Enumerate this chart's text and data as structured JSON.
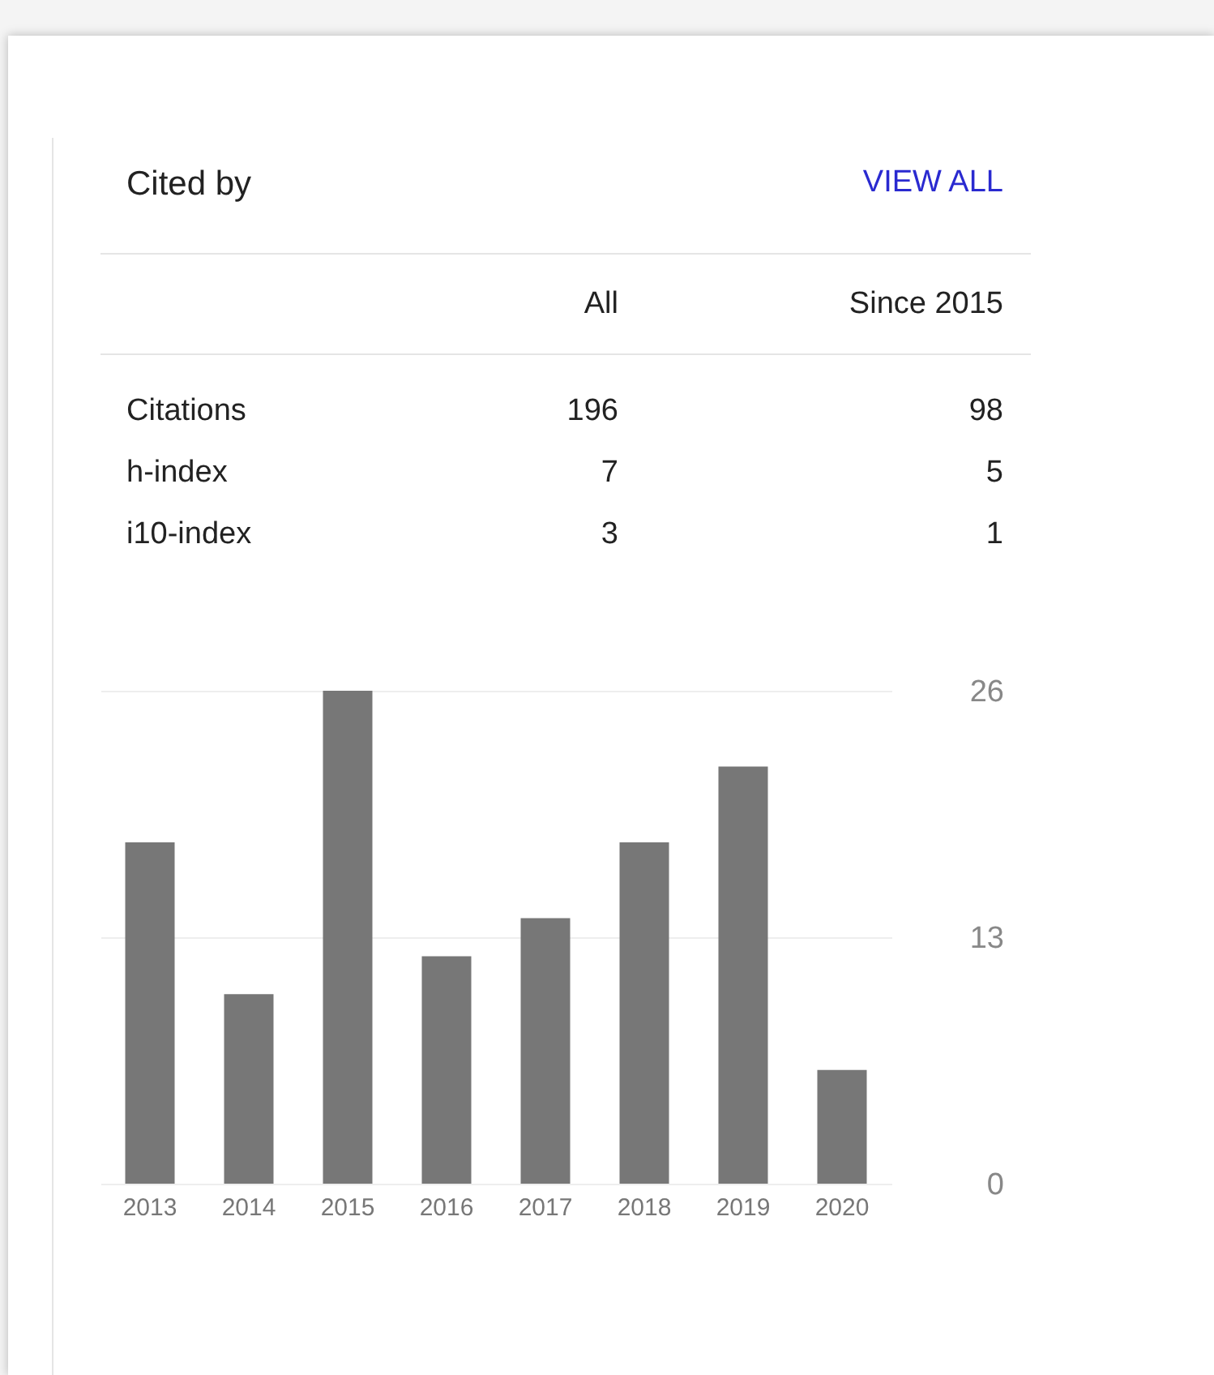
{
  "chart_data": [
    {
      "type": "other",
      "title": "Cited by",
      "annotations": [
        "VIEW ALL"
      ],
      "categories": [
        "All",
        "Since 2015"
      ],
      "y_categories": [
        "Citations",
        "h-index",
        "i10-index"
      ],
      "cell_labels": [
        [
          "196",
          "98"
        ],
        [
          "7",
          "5"
        ],
        [
          "3",
          "1"
        ]
      ]
    },
    {
      "type": "bar",
      "categories": [
        "2013",
        "2014",
        "2015",
        "2016",
        "2017",
        "2018",
        "2019",
        "2020"
      ],
      "values": [
        18,
        10,
        26,
        12,
        14,
        18,
        22,
        6
      ],
      "color": "#777777",
      "ylim": [
        0,
        26
      ],
      "yticks": [
        0,
        13,
        26
      ],
      "grid": "y"
    }
  ]
}
